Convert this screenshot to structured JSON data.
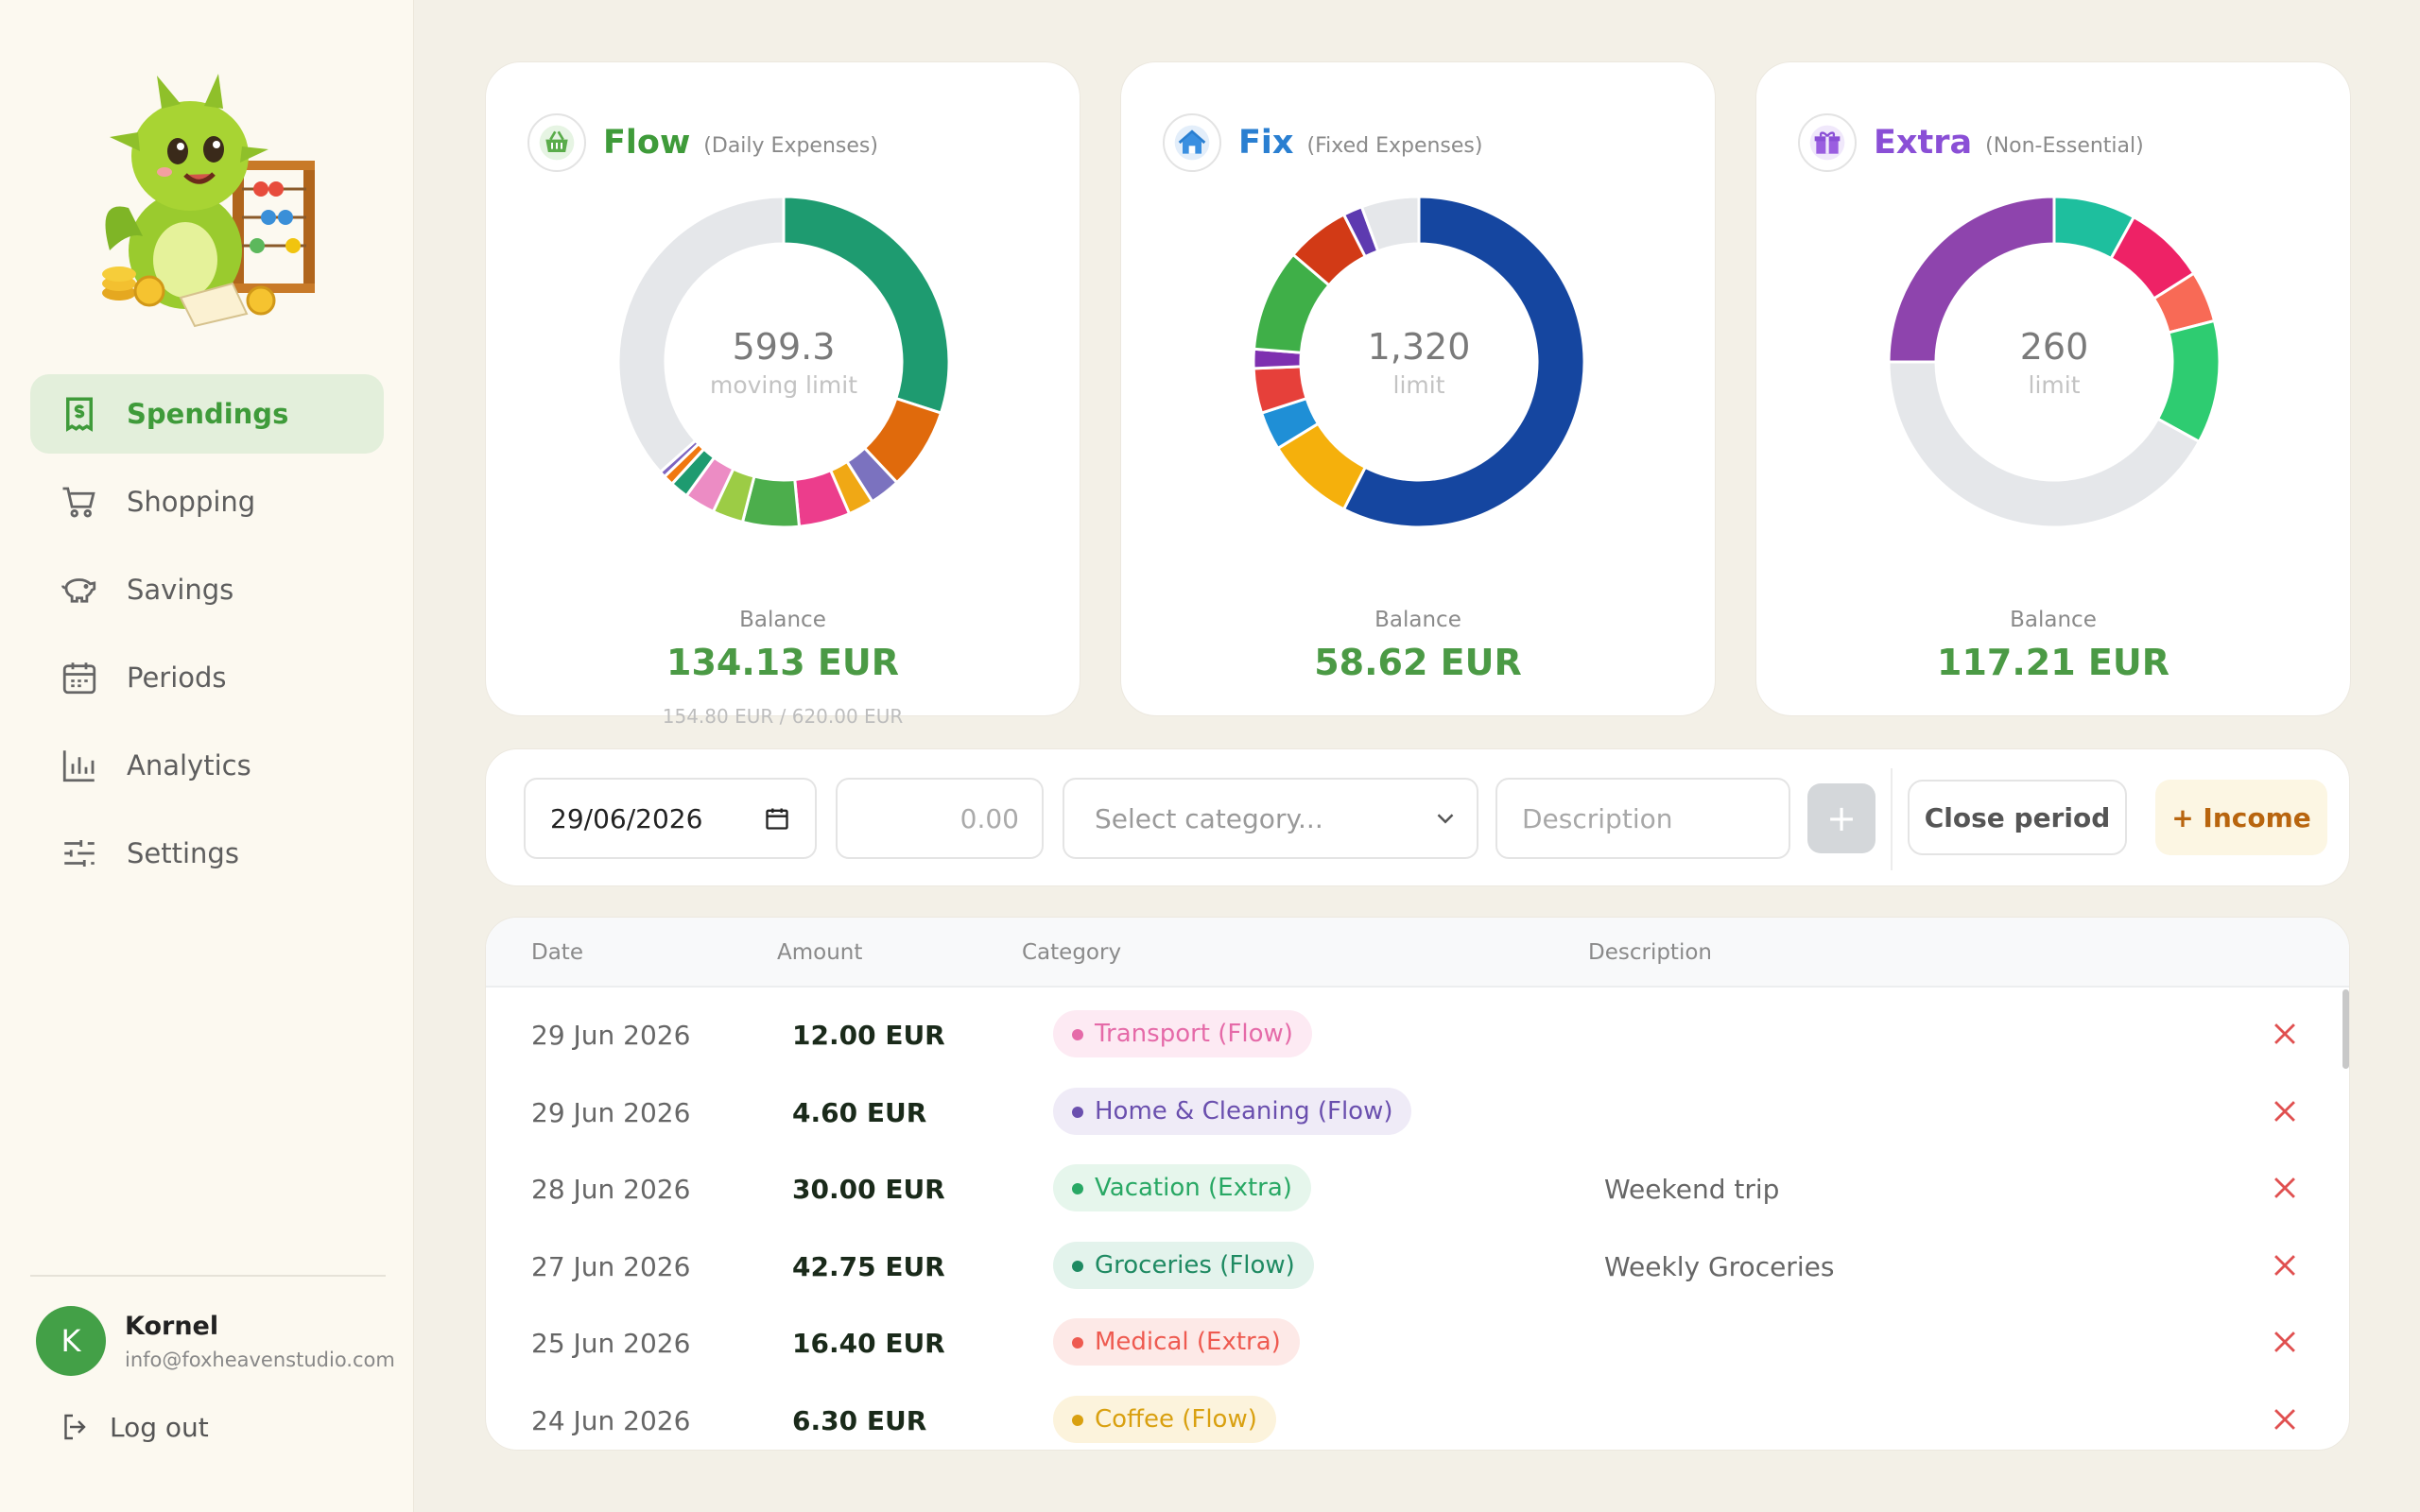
{
  "sidebar": {
    "items": [
      {
        "label": "Spendings",
        "icon": "receipt-dollar-icon",
        "active": true
      },
      {
        "label": "Shopping",
        "icon": "cart-icon",
        "active": false
      },
      {
        "label": "Savings",
        "icon": "piggy-bank-icon",
        "active": false
      },
      {
        "label": "Periods",
        "icon": "calendar-icon",
        "active": false
      },
      {
        "label": "Analytics",
        "icon": "bar-chart-icon",
        "active": false
      },
      {
        "label": "Settings",
        "icon": "sliders-icon",
        "active": false
      }
    ],
    "user": {
      "initial": "K",
      "name": "Kornel",
      "email": "info@foxheavenstudio.com"
    },
    "logout": "Log out"
  },
  "cards": [
    {
      "title": "Flow",
      "subtitle": "(Daily Expenses)",
      "icon": "basket-icon",
      "color": "#3f9b3a",
      "center_value": "599.3",
      "center_label": "moving limit",
      "balance_label": "Balance",
      "balance": "134.13 EUR",
      "balance_sub": "154.80 EUR / 620.00 EUR"
    },
    {
      "title": "Fix",
      "subtitle": "(Fixed Expenses)",
      "icon": "house-icon",
      "color": "#2a7fd1",
      "center_value": "1,320",
      "center_label": "limit",
      "balance_label": "Balance",
      "balance": "58.62 EUR",
      "balance_sub": ""
    },
    {
      "title": "Extra",
      "subtitle": "(Non-Essential)",
      "icon": "gift-icon",
      "color": "#8a4fd6",
      "center_value": "260",
      "center_label": "limit",
      "balance_label": "Balance",
      "balance": "117.21 EUR",
      "balance_sub": ""
    }
  ],
  "chart_data": [
    {
      "type": "pie",
      "title": "Flow",
      "colors": [
        "#1e9b70",
        "#e06a0c",
        "#7b72bf",
        "#f0a815",
        "#ec3d8c",
        "#4cae4c",
        "#9ccc45",
        "#ec8cc4",
        "#1e9b70",
        "#f07810",
        "#7e64c0",
        "#e5e7ea"
      ],
      "values": [
        30,
        8,
        3,
        2.5,
        5,
        5.5,
        3,
        3,
        1.8,
        1,
        0.6,
        36.6
      ]
    },
    {
      "type": "pie",
      "title": "Fix",
      "colors": [
        "#1546a0",
        "#f5b00c",
        "#1f8fd6",
        "#e6403a",
        "#7e30b0",
        "#3faf48",
        "#d23a16",
        "#5d3ab0",
        "#e5e7ea"
      ],
      "values": [
        46,
        7,
        3,
        3.5,
        1.5,
        8,
        5,
        1.5,
        4.5
      ]
    },
    {
      "type": "pie",
      "title": "Extra",
      "colors": [
        "#1ebf9e",
        "#ee2266",
        "#f86a56",
        "#2ecc71",
        "#e5e7ea",
        "#8e44ad"
      ],
      "values": [
        8,
        8,
        5,
        12,
        42,
        25
      ]
    }
  ],
  "toolbar": {
    "date_value": "29/06/2026",
    "amount_placeholder": "0.00",
    "category_placeholder": "Select category...",
    "description_placeholder": "Description",
    "add_label": "+",
    "close_period_label": "Close period",
    "income_label": "+ Income"
  },
  "table": {
    "headers": {
      "date": "Date",
      "amount": "Amount",
      "category": "Category",
      "description": "Description"
    },
    "rows": [
      {
        "date": "29 Jun 2026",
        "amount": "12.00 EUR",
        "category": "Transport (Flow)",
        "cat_color": "#e56aa8",
        "cat_bg": "#fdeaf3",
        "description": ""
      },
      {
        "date": "29 Jun 2026",
        "amount": "4.60 EUR",
        "category": "Home & Cleaning (Flow)",
        "cat_color": "#6a4fae",
        "cat_bg": "#efebf7",
        "description": ""
      },
      {
        "date": "28 Jun 2026",
        "amount": "30.00 EUR",
        "category": "Vacation (Extra)",
        "cat_color": "#28a864",
        "cat_bg": "#e6f6ec",
        "description": "Weekend trip"
      },
      {
        "date": "27 Jun 2026",
        "amount": "42.75 EUR",
        "category": "Groceries (Flow)",
        "cat_color": "#1e8a62",
        "cat_bg": "#e3f3ec",
        "description": "Weekly Groceries"
      },
      {
        "date": "25 Jun 2026",
        "amount": "16.40 EUR",
        "category": "Medical (Extra)",
        "cat_color": "#ee5a50",
        "cat_bg": "#fde9e7",
        "description": ""
      },
      {
        "date": "24 Jun 2026",
        "amount": "6.30 EUR",
        "category": "Coffee (Flow)",
        "cat_color": "#d9a010",
        "cat_bg": "#fcf3dc",
        "description": ""
      }
    ]
  }
}
